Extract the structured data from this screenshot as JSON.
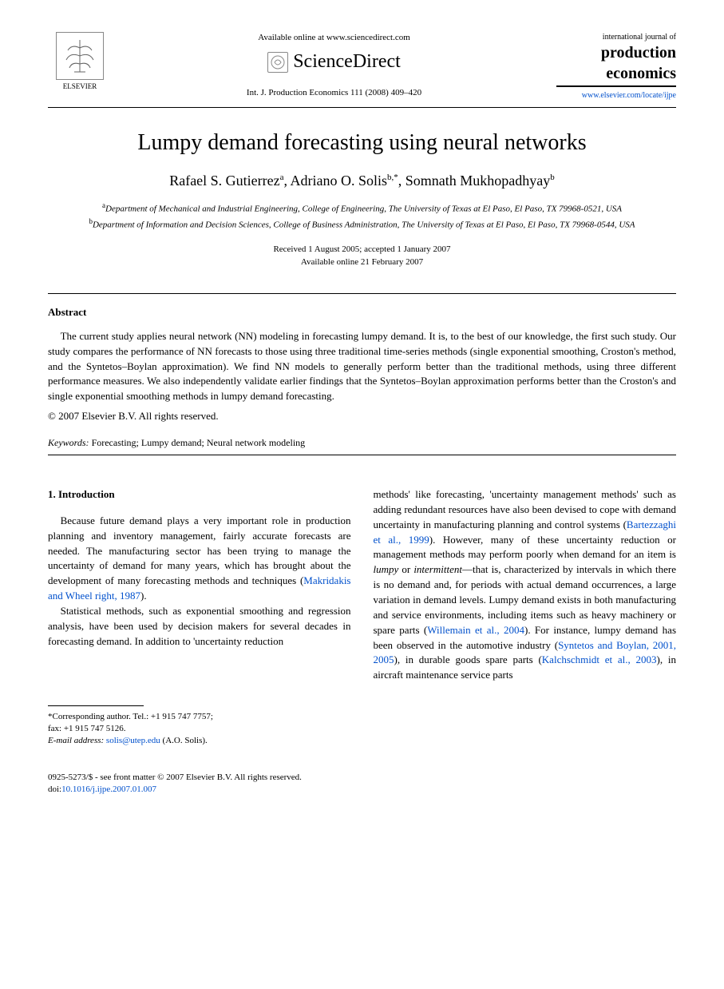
{
  "header": {
    "elsevier_label": "ELSEVIER",
    "available_online": "Available online at www.sciencedirect.com",
    "sciencedirect": "ScienceDirect",
    "journal_ref": "Int. J. Production Economics 111 (2008) 409–420",
    "journal_intl": "international journal of",
    "journal_prod": "production",
    "journal_econ": "economics",
    "journal_url": "www.elsevier.com/locate/ijpe"
  },
  "title": "Lumpy demand forecasting using neural networks",
  "authors_html": "Rafael S. Gutierrez<sup>a</sup>, Adriano O. Solis<sup>b,*</sup>, Somnath Mukhopadhyay<sup>b</sup>",
  "affiliations": {
    "a": "Department of Mechanical and Industrial Engineering, College of Engineering, The University of Texas at El Paso, El Paso, TX 79968-0521, USA",
    "b": "Department of Information and Decision Sciences, College of Business Administration, The University of Texas at El Paso, El Paso, TX 79968-0544, USA"
  },
  "dates": {
    "received_accepted": "Received 1 August 2005; accepted 1 January 2007",
    "available": "Available online 21 February 2007"
  },
  "abstract": {
    "heading": "Abstract",
    "text": "The current study applies neural network (NN) modeling in forecasting lumpy demand. It is, to the best of our knowledge, the first such study. Our study compares the performance of NN forecasts to those using three traditional time-series methods (single exponential smoothing, Croston's method, and the Syntetos–Boylan approximation). We find NN models to generally perform better than the traditional methods, using three different performance measures. We also independently validate earlier findings that the Syntetos–Boylan approximation performs better than the Croston's and single exponential smoothing methods in lumpy demand forecasting.",
    "copyright": "© 2007 Elsevier B.V. All rights reserved."
  },
  "keywords": {
    "label": "Keywords:",
    "text": " Forecasting; Lumpy demand; Neural network modeling"
  },
  "intro": {
    "heading": "1. Introduction",
    "col1_p1_a": "Because future demand plays a very important role in production planning and inventory management, fairly accurate forecasts are needed. The manufacturing sector has been trying to manage the uncertainty of demand for many years, which has brought about the development of many forecasting methods and techniques (",
    "col1_p1_link": "Makridakis and Wheel right, 1987",
    "col1_p1_b": ").",
    "col1_p2": "Statistical methods, such as exponential smoothing and regression analysis, have been used by decision makers for several decades in forecasting demand. In addition to 'uncertainty reduction",
    "col2_a": "methods' like forecasting, 'uncertainty management methods' such as adding redundant resources have also been devised to cope with demand uncertainty in manufacturing planning and control systems (",
    "col2_link1": "Bartezzaghi et al., 1999",
    "col2_b": "). However, many of these uncertainty reduction or management methods may perform poorly when demand for an item is ",
    "col2_lumpy": "lumpy",
    "col2_c": " or ",
    "col2_intermittent": "intermittent",
    "col2_d": "—that is, characterized by intervals in which there is no demand and, for periods with actual demand occurrences, a large variation in demand levels. Lumpy demand exists in both manufacturing and service environments, including items such as heavy machinery or spare parts (",
    "col2_link2": "Willemain et al., 2004",
    "col2_e": "). For instance, lumpy demand has been observed in the automotive industry (",
    "col2_link3": "Syntetos and Boylan, 2001, 2005",
    "col2_f": "), in durable goods spare parts (",
    "col2_link4": "Kalchschmidt et al., 2003",
    "col2_g": "), in aircraft maintenance service parts"
  },
  "footnote": {
    "corresponding": "*Corresponding author. Tel.: +1 915 747 7757;",
    "fax": "fax: +1 915 747 5126.",
    "email_label": "E-mail address:",
    "email": "solis@utep.edu",
    "email_name": " (A.O. Solis)."
  },
  "footer": {
    "line1": "0925-5273/$ - see front matter © 2007 Elsevier B.V. All rights reserved.",
    "doi_label": "doi:",
    "doi": "10.1016/j.ijpe.2007.01.007"
  }
}
